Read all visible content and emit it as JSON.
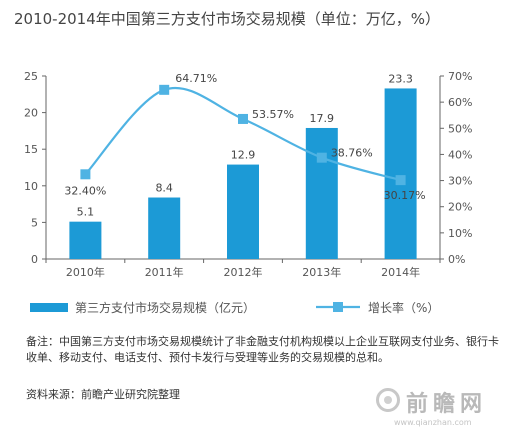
{
  "chart_data": {
    "type": "bar+line",
    "title": "2010-2014年中国第三方支付市场交易规模（单位：万亿，%）",
    "categories": [
      "2010年",
      "2011年",
      "2012年",
      "2013年",
      "2014年"
    ],
    "series": [
      {
        "name": "第三方支付市场交易规模（亿元）",
        "type": "bar",
        "axis": "left",
        "values": [
          5.1,
          8.4,
          12.9,
          17.9,
          23.3
        ],
        "labels": [
          "5.1",
          "8.4",
          "12.9",
          "17.9",
          "23.3"
        ],
        "color": "#1c9ad6"
      },
      {
        "name": "增长率（%）",
        "type": "line",
        "axis": "right",
        "values": [
          32.4,
          64.71,
          53.57,
          38.76,
          30.17
        ],
        "labels": [
          "32.40%",
          "64.71%",
          "53.57%",
          "38.76%",
          "30.17%"
        ],
        "color": "#4fb3e3"
      }
    ],
    "y_left": {
      "min": 0,
      "max": 25,
      "ticks": [
        "0",
        "5",
        "10",
        "15",
        "20",
        "25"
      ],
      "tick_values": [
        0,
        5,
        10,
        15,
        20,
        25
      ]
    },
    "y_right": {
      "min": 0,
      "max": 70,
      "ticks": [
        "0%",
        "10%",
        "20%",
        "30%",
        "40%",
        "50%",
        "60%",
        "70%"
      ],
      "tick_values": [
        0,
        10,
        20,
        30,
        40,
        50,
        60,
        70
      ]
    },
    "grid": false,
    "legend_position": "bottom"
  },
  "note": "备注：中国第三方支付市场交易规模统计了非金融支付机构规模以上企业互联网支付业务、银行卡收单、移动支付、电话支付、预付卡发行与受理等业务的交易规模的总和。",
  "source": "资料来源：前瞻产业研究院整理",
  "watermark": {
    "text": "前瞻网",
    "url": "www.qianzhan.com"
  }
}
